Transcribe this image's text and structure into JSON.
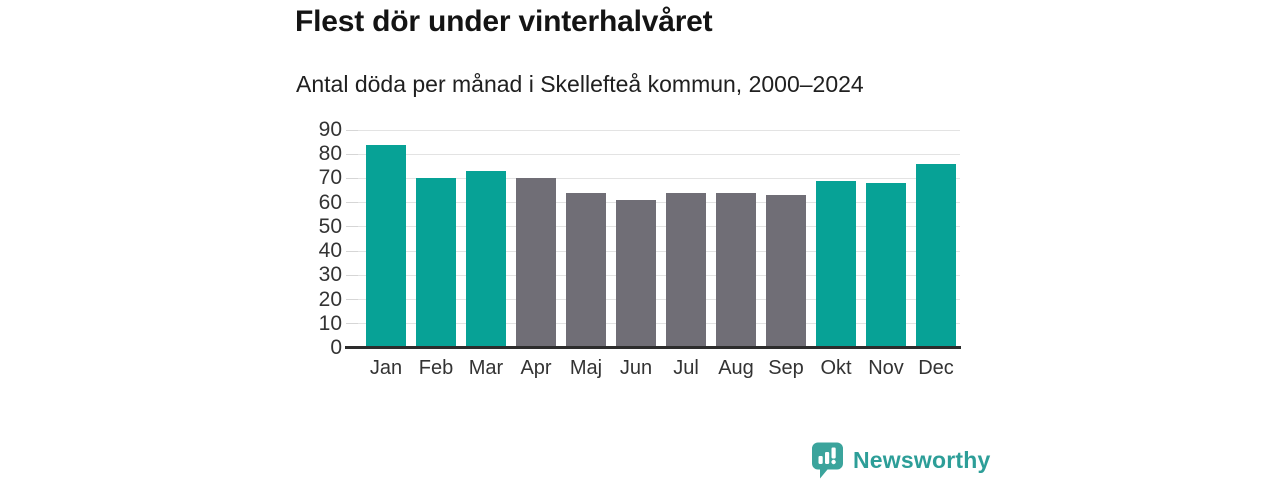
{
  "header": {
    "title": "Flest dör under vinterhalvåret",
    "subtitle": "Antal döda per månad i Skellefteå kommun, 2000–2024"
  },
  "chart_data": {
    "type": "bar",
    "title": "Flest dör under vinterhalvåret",
    "subtitle": "Antal döda per månad i Skellefteå kommun, 2000–2024",
    "categories": [
      "Jan",
      "Feb",
      "Mar",
      "Apr",
      "Maj",
      "Jun",
      "Jul",
      "Aug",
      "Sep",
      "Okt",
      "Nov",
      "Dec"
    ],
    "values": [
      84,
      70,
      73,
      70,
      64,
      61,
      64,
      64,
      63,
      69,
      68,
      76
    ],
    "xlabel": "",
    "ylabel": "",
    "ylim": [
      0,
      90
    ],
    "yticks": [
      0,
      10,
      20,
      30,
      40,
      50,
      60,
      70,
      80,
      90
    ],
    "grid": true,
    "legend": "none",
    "highlighted_categories": [
      "Jan",
      "Feb",
      "Mar",
      "Okt",
      "Nov",
      "Dec"
    ],
    "highlight_color": "#07a296",
    "muted_color": "#706e76",
    "gridline_color": "#e3e3e3",
    "axis_line_color": "#2c2c2c",
    "tick_label_color": "#333333"
  },
  "footer": {
    "brand": "Newsworthy",
    "brand_color": "#2d9e98",
    "logo_icon": "bar-chart-speech-bubble-icon",
    "logo_icon_color": "#3ba49c"
  }
}
